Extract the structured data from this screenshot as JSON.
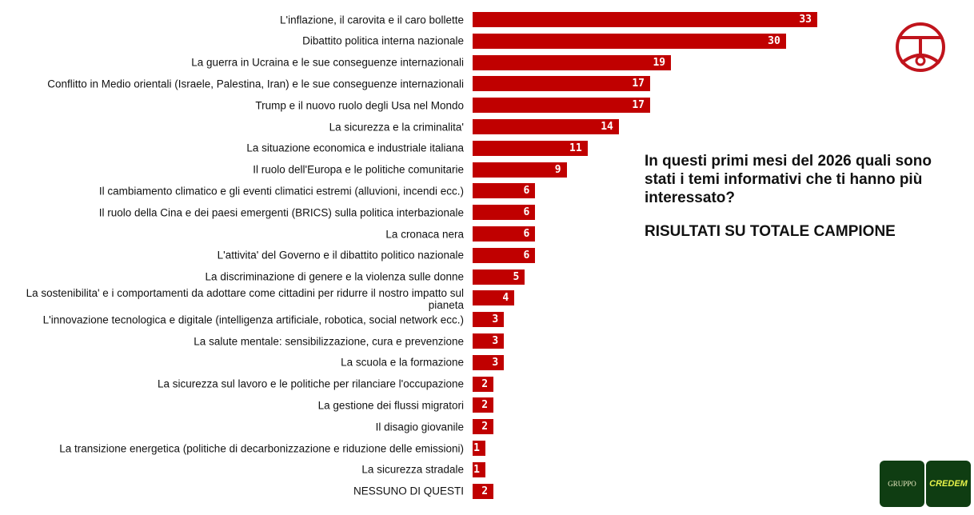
{
  "chart_data": {
    "type": "bar",
    "orientation": "horizontal",
    "categories": [
      "L'inflazione, il carovita e il caro bollette",
      "Dibattito politica interna nazionale",
      "La guerra in Ucraina e le sue conseguenze internazionali",
      "Conflitto in Medio orientali (Israele, Palestina, Iran) e le sue conseguenze internazionali",
      "Trump e il nuovo ruolo degli Usa nel Mondo",
      "La sicurezza e la criminalita'",
      "La situazione economica e industriale italiana",
      "Il ruolo dell'Europa e le politiche comunitarie",
      "Il cambiamento climatico e gli eventi climatici estremi (alluvioni, incendi ecc.)",
      "Il ruolo della Cina e dei paesi emergenti (BRICS) sulla politica interbazionale",
      "La cronaca nera",
      "L'attivita' del Governo e il dibattito politico nazionale",
      "La discriminazione di genere e la violenza sulle donne",
      "La sostenibilita' e i comportamenti da adottare come cittadini per ridurre il nostro impatto sul pianeta",
      "L'innovazione tecnologica e digitale (intelligenza artificiale, robotica, social network ecc.)",
      "La salute mentale: sensibilizzazione, cura e prevenzione",
      "La scuola e la formazione",
      "La sicurezza sul lavoro e le politiche per rilanciare l'occupazione",
      "La gestione dei flussi migratori",
      "Il disagio giovanile",
      "La transizione energetica (politiche di decarbonizzazione e riduzione delle emissioni)",
      "La sicurezza stradale",
      "NESSUNO DI QUESTI"
    ],
    "values": [
      33,
      30,
      19,
      17,
      17,
      14,
      11,
      9,
      6,
      6,
      6,
      6,
      5,
      4,
      3,
      3,
      3,
      2,
      2,
      2,
      1,
      1,
      2
    ],
    "bar_color": "#c00000",
    "grid": false
  },
  "question": "In questi primi mesi del 2026 quali sono stati i temi informativi che ti hanno più interessato?",
  "subtitle": "RISULTATI SU TOTALE CAMPIONE",
  "logo": {
    "left": "GRUPPO",
    "right": "CREDEM"
  }
}
